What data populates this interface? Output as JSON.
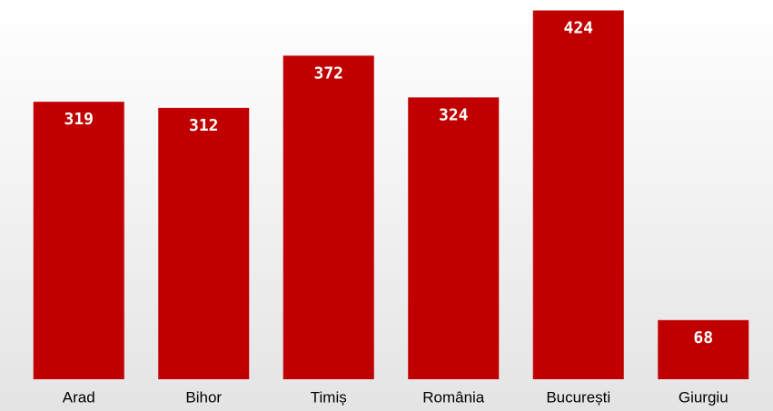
{
  "chart_data": {
    "type": "bar",
    "categories": [
      "Arad",
      "Bihor",
      "Timiș",
      "România",
      "București",
      "Giurgiu"
    ],
    "values": [
      319,
      312,
      372,
      324,
      424,
      68
    ],
    "color": "#c00000",
    "ylim": [
      0,
      436
    ]
  }
}
